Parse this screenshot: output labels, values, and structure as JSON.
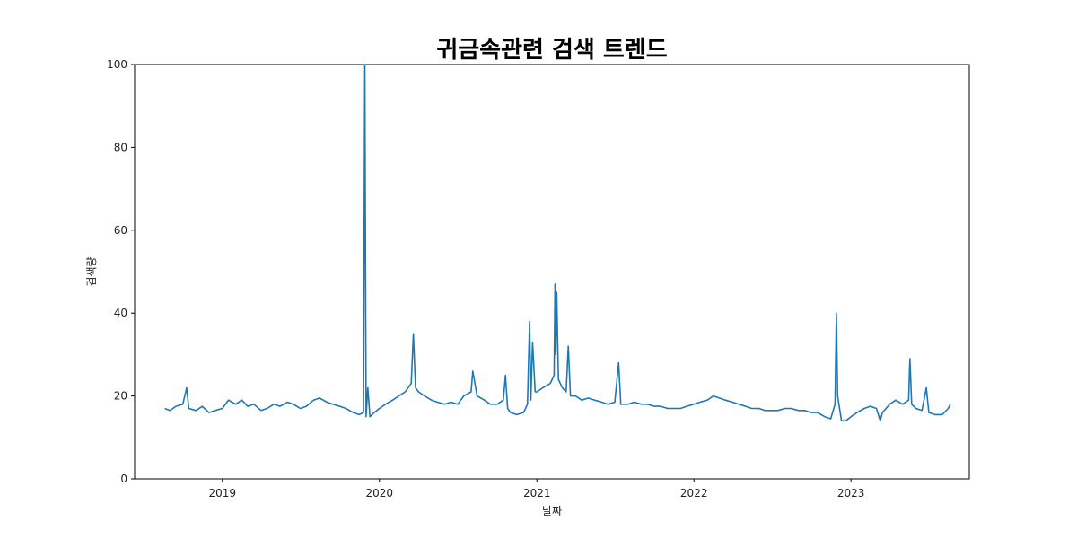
{
  "chart_data": {
    "type": "line",
    "title": "귀금속관련 검색 트렌드",
    "xlabel": "날짜",
    "ylabel": "검색량",
    "xlim": [
      "2018-06-11",
      "2023-10-03"
    ],
    "ylim": [
      0,
      100
    ],
    "x_ticks": [
      "2019",
      "2020",
      "2021",
      "2022",
      "2023"
    ],
    "y_ticks": [
      "0",
      "20",
      "40",
      "60",
      "80",
      "100"
    ],
    "grid": false,
    "legend": "none",
    "line_color": "#1f77b4",
    "series": [
      {
        "points": [
          [
            "2018-08-20",
            17
          ],
          [
            "2018-09-01",
            16.5
          ],
          [
            "2018-09-15",
            17.5
          ],
          [
            "2018-10-01",
            18
          ],
          [
            "2018-10-10",
            22
          ],
          [
            "2018-10-15",
            17
          ],
          [
            "2018-11-01",
            16.5
          ],
          [
            "2018-11-15",
            17.5
          ],
          [
            "2018-12-01",
            16
          ],
          [
            "2018-12-15",
            16.5
          ],
          [
            "2019-01-01",
            17
          ],
          [
            "2019-01-15",
            19
          ],
          [
            "2019-02-01",
            18
          ],
          [
            "2019-02-15",
            19
          ],
          [
            "2019-03-01",
            17.5
          ],
          [
            "2019-03-15",
            18
          ],
          [
            "2019-04-01",
            16.5
          ],
          [
            "2019-04-15",
            17
          ],
          [
            "2019-05-01",
            18
          ],
          [
            "2019-05-15",
            17.5
          ],
          [
            "2019-06-01",
            18.5
          ],
          [
            "2019-06-15",
            18
          ],
          [
            "2019-07-01",
            17
          ],
          [
            "2019-07-15",
            17.5
          ],
          [
            "2019-08-01",
            19
          ],
          [
            "2019-08-15",
            19.5
          ],
          [
            "2019-09-01",
            18.5
          ],
          [
            "2019-09-15",
            18
          ],
          [
            "2019-10-01",
            17.5
          ],
          [
            "2019-10-15",
            17
          ],
          [
            "2019-11-01",
            16
          ],
          [
            "2019-11-15",
            15.5
          ],
          [
            "2019-11-25",
            16
          ],
          [
            "2019-11-28",
            100
          ],
          [
            "2019-12-01",
            15
          ],
          [
            "2019-12-05",
            22
          ],
          [
            "2019-12-10",
            15
          ],
          [
            "2019-12-20",
            16
          ],
          [
            "2020-01-01",
            17
          ],
          [
            "2020-01-15",
            18
          ],
          [
            "2020-02-01",
            19
          ],
          [
            "2020-02-15",
            20
          ],
          [
            "2020-03-01",
            21
          ],
          [
            "2020-03-15",
            23
          ],
          [
            "2020-03-20",
            35
          ],
          [
            "2020-03-25",
            22
          ],
          [
            "2020-04-01",
            21
          ],
          [
            "2020-04-15",
            20
          ],
          [
            "2020-05-01",
            19
          ],
          [
            "2020-05-15",
            18.5
          ],
          [
            "2020-06-01",
            18
          ],
          [
            "2020-06-15",
            18.5
          ],
          [
            "2020-07-01",
            18
          ],
          [
            "2020-07-15",
            20
          ],
          [
            "2020-08-01",
            21
          ],
          [
            "2020-08-05",
            26
          ],
          [
            "2020-08-15",
            20
          ],
          [
            "2020-09-01",
            19
          ],
          [
            "2020-09-15",
            18
          ],
          [
            "2020-10-01",
            18
          ],
          [
            "2020-10-15",
            19
          ],
          [
            "2020-10-20",
            25
          ],
          [
            "2020-10-25",
            17
          ],
          [
            "2020-11-01",
            16
          ],
          [
            "2020-11-15",
            15.5
          ],
          [
            "2020-12-01",
            16
          ],
          [
            "2020-12-10",
            18
          ],
          [
            "2020-12-15",
            38
          ],
          [
            "2020-12-18",
            19
          ],
          [
            "2020-12-22",
            33
          ],
          [
            "2020-12-28",
            21
          ],
          [
            "2021-01-01",
            21
          ],
          [
            "2021-01-15",
            22
          ],
          [
            "2021-02-01",
            23
          ],
          [
            "2021-02-10",
            25
          ],
          [
            "2021-02-12",
            47
          ],
          [
            "2021-02-14",
            30
          ],
          [
            "2021-02-16",
            45
          ],
          [
            "2021-02-20",
            24
          ],
          [
            "2021-03-01",
            22
          ],
          [
            "2021-03-10",
            21
          ],
          [
            "2021-03-15",
            32
          ],
          [
            "2021-03-20",
            20
          ],
          [
            "2021-04-01",
            20
          ],
          [
            "2021-04-15",
            19
          ],
          [
            "2021-05-01",
            19.5
          ],
          [
            "2021-05-15",
            19
          ],
          [
            "2021-06-01",
            18.5
          ],
          [
            "2021-06-15",
            18
          ],
          [
            "2021-07-01",
            18.5
          ],
          [
            "2021-07-10",
            28
          ],
          [
            "2021-07-15",
            18
          ],
          [
            "2021-08-01",
            18
          ],
          [
            "2021-08-15",
            18.5
          ],
          [
            "2021-09-01",
            18
          ],
          [
            "2021-09-15",
            18
          ],
          [
            "2021-10-01",
            17.5
          ],
          [
            "2021-10-15",
            17.5
          ],
          [
            "2021-11-01",
            17
          ],
          [
            "2021-11-15",
            17
          ],
          [
            "2021-12-01",
            17
          ],
          [
            "2021-12-15",
            17.5
          ],
          [
            "2022-01-01",
            18
          ],
          [
            "2022-01-15",
            18.5
          ],
          [
            "2022-02-01",
            19
          ],
          [
            "2022-02-15",
            20
          ],
          [
            "2022-03-01",
            19.5
          ],
          [
            "2022-03-15",
            19
          ],
          [
            "2022-04-01",
            18.5
          ],
          [
            "2022-04-15",
            18
          ],
          [
            "2022-05-01",
            17.5
          ],
          [
            "2022-05-15",
            17
          ],
          [
            "2022-06-01",
            17
          ],
          [
            "2022-06-15",
            16.5
          ],
          [
            "2022-07-01",
            16.5
          ],
          [
            "2022-07-15",
            16.5
          ],
          [
            "2022-08-01",
            17
          ],
          [
            "2022-08-15",
            17
          ],
          [
            "2022-09-01",
            16.5
          ],
          [
            "2022-09-15",
            16.5
          ],
          [
            "2022-10-01",
            16
          ],
          [
            "2022-10-15",
            16
          ],
          [
            "2022-11-01",
            15
          ],
          [
            "2022-11-15",
            14.5
          ],
          [
            "2022-11-25",
            18
          ],
          [
            "2022-11-28",
            40
          ],
          [
            "2022-12-01",
            20
          ],
          [
            "2022-12-10",
            14
          ],
          [
            "2022-12-20",
            14
          ],
          [
            "2023-01-01",
            15
          ],
          [
            "2023-01-15",
            16
          ],
          [
            "2023-02-01",
            17
          ],
          [
            "2023-02-15",
            17.5
          ],
          [
            "2023-03-01",
            17
          ],
          [
            "2023-03-10",
            14
          ],
          [
            "2023-03-15",
            16
          ],
          [
            "2023-04-01",
            18
          ],
          [
            "2023-04-15",
            19
          ],
          [
            "2023-05-01",
            18
          ],
          [
            "2023-05-15",
            19
          ],
          [
            "2023-05-18",
            29
          ],
          [
            "2023-05-22",
            18
          ],
          [
            "2023-06-01",
            17
          ],
          [
            "2023-06-15",
            16.5
          ],
          [
            "2023-06-25",
            22
          ],
          [
            "2023-07-01",
            16
          ],
          [
            "2023-07-15",
            15.5
          ],
          [
            "2023-08-01",
            15.5
          ],
          [
            "2023-08-15",
            17
          ],
          [
            "2023-08-20",
            18
          ]
        ]
      }
    ]
  }
}
